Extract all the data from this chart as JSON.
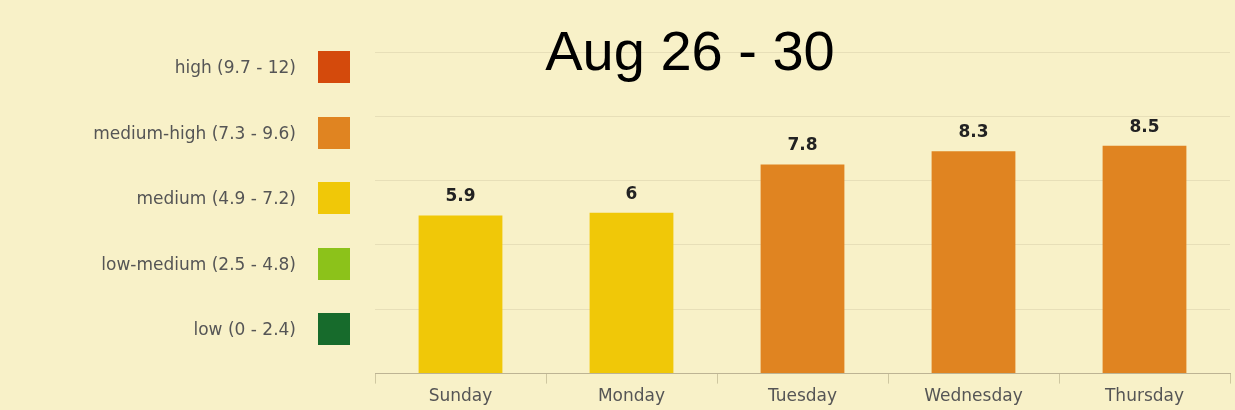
{
  "chart_data": {
    "type": "bar",
    "title": "Aug 26 - 30",
    "categories": [
      "Sunday",
      "Monday",
      "Tuesday",
      "Wednesday",
      "Thursday"
    ],
    "series": [
      {
        "name": "high (9.7 - 12)",
        "color": "#d44a0c",
        "values": [
          null,
          null,
          null,
          null,
          null
        ]
      },
      {
        "name": "medium-high (7.3 - 9.6)",
        "color": "#e08421",
        "values": [
          null,
          null,
          7.8,
          8.3,
          8.5
        ]
      },
      {
        "name": "medium (4.9 - 7.2)",
        "color": "#f0c808",
        "values": [
          5.9,
          6,
          null,
          null,
          null
        ]
      },
      {
        "name": "low-medium (2.5 - 4.8)",
        "color": "#8cc21a",
        "values": [
          null,
          null,
          null,
          null,
          null
        ]
      },
      {
        "name": "low (0 - 2.4)",
        "color": "#176b2c",
        "values": [
          null,
          null,
          null,
          null,
          null
        ]
      }
    ],
    "stacked": true,
    "ylim": [
      0,
      12
    ],
    "yticks": [
      {
        "value": 0,
        "label": null
      },
      {
        "value": 2.4,
        "label": null
      },
      {
        "value": 4.8,
        "label": null
      },
      {
        "value": 7.2,
        "label": null
      },
      {
        "value": 9.6,
        "label": null
      },
      {
        "value": 12,
        "label": null
      }
    ],
    "tick_labels": "x",
    "grid": "y",
    "legend": "left",
    "data_labels": true
  }
}
